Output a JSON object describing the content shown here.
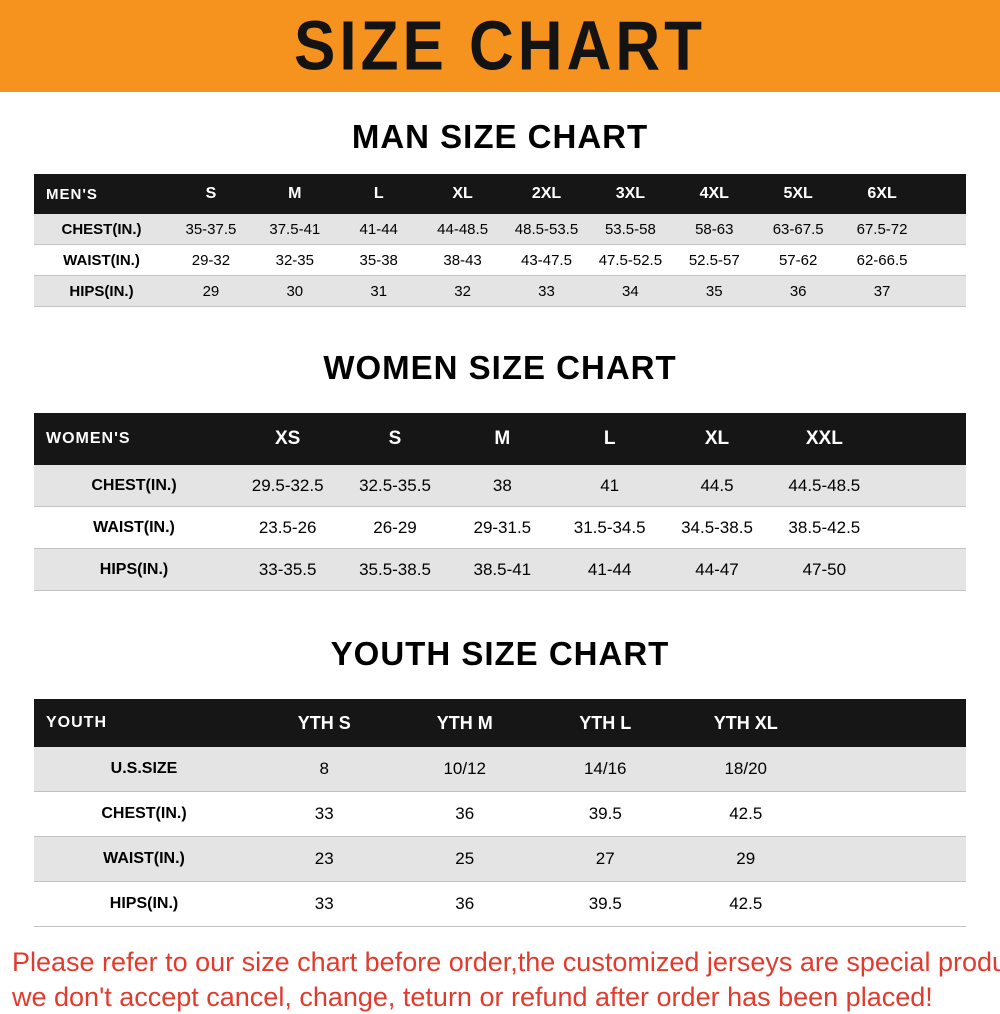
{
  "banner": {
    "title": "SIZE CHART",
    "bg_color": "#f6921e"
  },
  "sections": [
    {
      "heading": "MAN SIZE CHART",
      "table": {
        "header_label": "MEN'S",
        "columns": [
          "S",
          "M",
          "L",
          "XL",
          "2XL",
          "3XL",
          "4XL",
          "5XL",
          "6XL"
        ],
        "rows": [
          {
            "label": "CHEST(IN.)",
            "values": [
              "35-37.5",
              "37.5-41",
              "41-44",
              "44-48.5",
              "48.5-53.5",
              "53.5-58",
              "58-63",
              "63-67.5",
              "67.5-72"
            ]
          },
          {
            "label": "WAIST(IN.)",
            "values": [
              "29-32",
              "32-35",
              "35-38",
              "38-43",
              "43-47.5",
              "47.5-52.5",
              "52.5-57",
              "57-62",
              "62-66.5"
            ]
          },
          {
            "label": "HIPS(IN.)",
            "values": [
              "29",
              "30",
              "31",
              "32",
              "33",
              "34",
              "35",
              "36",
              "37"
            ]
          }
        ]
      }
    },
    {
      "heading": "WOMEN SIZE CHART",
      "table": {
        "header_label": "WOMEN'S",
        "columns": [
          "XS",
          "S",
          "M",
          "L",
          "XL",
          "XXL"
        ],
        "rows": [
          {
            "label": "CHEST(IN.)",
            "values": [
              "29.5-32.5",
              "32.5-35.5",
              "38",
              "41",
              "44.5",
              "44.5-48.5"
            ]
          },
          {
            "label": "WAIST(IN.)",
            "values": [
              "23.5-26",
              "26-29",
              "29-31.5",
              "31.5-34.5",
              "34.5-38.5",
              "38.5-42.5"
            ]
          },
          {
            "label": "HIPS(IN.)",
            "values": [
              "33-35.5",
              "35.5-38.5",
              "38.5-41",
              "41-44",
              "44-47",
              "47-50"
            ]
          }
        ]
      }
    },
    {
      "heading": "YOUTH SIZE CHART",
      "table": {
        "header_label": "YOUTH",
        "columns": [
          "YTH S",
          "YTH M",
          "YTH L",
          "YTH XL"
        ],
        "rows": [
          {
            "label": "U.S.SIZE",
            "values": [
              "8",
              "10/12",
              "14/16",
              "18/20"
            ]
          },
          {
            "label": "CHEST(IN.)",
            "values": [
              "33",
              "36",
              "39.5",
              "42.5"
            ]
          },
          {
            "label": "WAIST(IN.)",
            "values": [
              "23",
              "25",
              "27",
              "29"
            ]
          },
          {
            "label": "HIPS(IN.)",
            "values": [
              "33",
              "36",
              "39.5",
              "42.5"
            ]
          }
        ]
      }
    }
  ],
  "footer": {
    "line1": "Please refer to our size chart before order,the customized jerseys are special products,",
    "line2": "we don't accept cancel, change, teturn or refund after order has been placed!"
  }
}
